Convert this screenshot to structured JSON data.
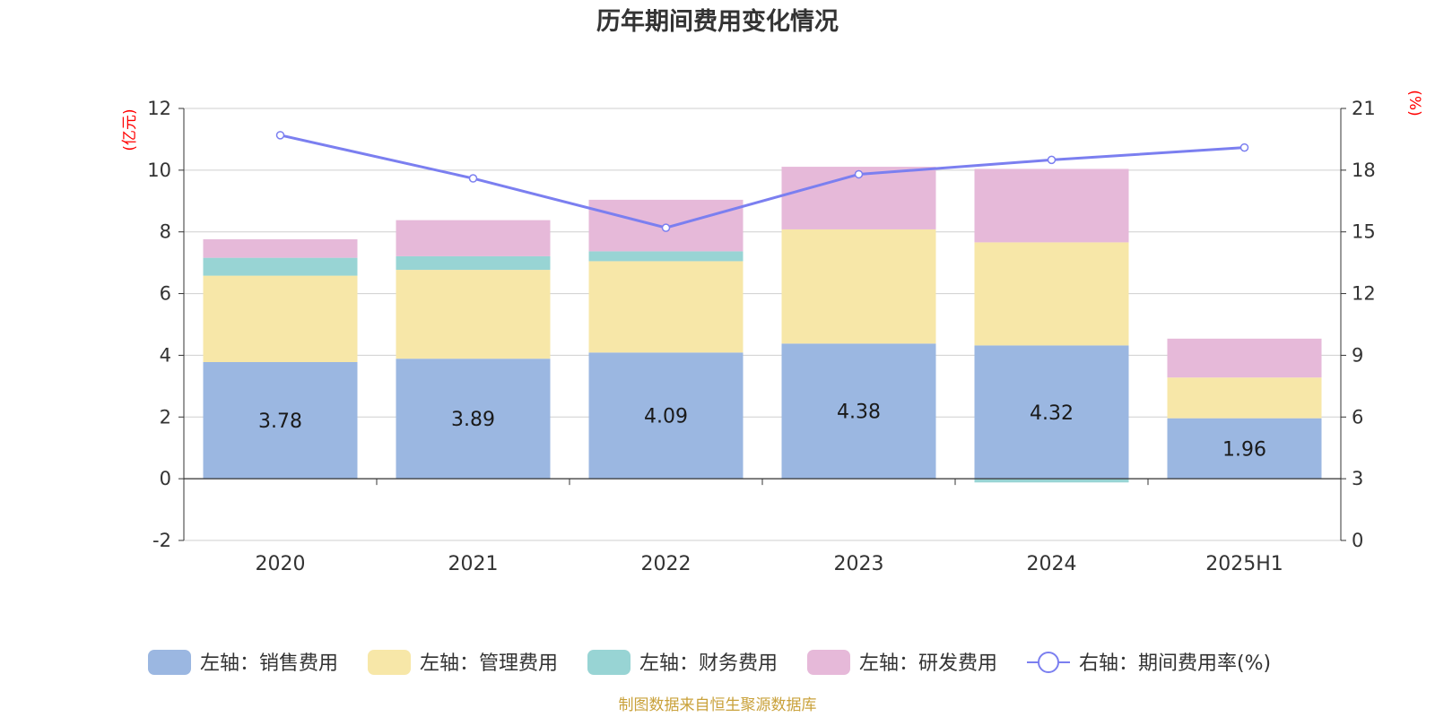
{
  "chart_data": {
    "type": "bar",
    "stacked": true,
    "title": "历年期间费用变化情况",
    "categories": [
      "2020",
      "2021",
      "2022",
      "2023",
      "2024",
      "2025H1"
    ],
    "left_axis": {
      "unit": "(亿元)",
      "ylim": [
        -2,
        12
      ],
      "ticks": [
        -2,
        0,
        2,
        4,
        6,
        8,
        10,
        12
      ]
    },
    "right_axis": {
      "unit": "(%)",
      "ylim": [
        0,
        21
      ],
      "ticks": [
        0,
        3,
        6,
        9,
        12,
        15,
        18,
        21
      ]
    },
    "grid": true,
    "series": [
      {
        "name": "左轴：销售费用",
        "axis": "left",
        "color": "#9bb7e1",
        "values": [
          3.78,
          3.89,
          4.09,
          4.38,
          4.32,
          1.96
        ],
        "labels": [
          "3.78",
          "3.89",
          "4.09",
          "4.38",
          "4.32",
          "1.96"
        ]
      },
      {
        "name": "左轴：管理费用",
        "axis": "left",
        "color": "#f7e7a8",
        "values": [
          2.8,
          2.88,
          2.96,
          3.7,
          3.34,
          1.32
        ]
      },
      {
        "name": "左轴：财务费用",
        "axis": "left",
        "color": "#98d4d4",
        "values": [
          0.58,
          0.44,
          0.32,
          0.0,
          -0.12,
          0.0
        ]
      },
      {
        "name": "左轴：研发费用",
        "axis": "left",
        "color": "#e6b9d9",
        "values": [
          0.6,
          1.17,
          1.67,
          2.03,
          2.38,
          1.26
        ]
      },
      {
        "name": "右轴：期间费用率(%)",
        "axis": "right",
        "type": "line",
        "color": "#7b7ff0",
        "values": [
          19.7,
          17.6,
          15.2,
          17.8,
          18.5,
          19.1
        ]
      }
    ],
    "legend_position": "bottom",
    "source": "制图数据来自恒生聚源数据库"
  }
}
